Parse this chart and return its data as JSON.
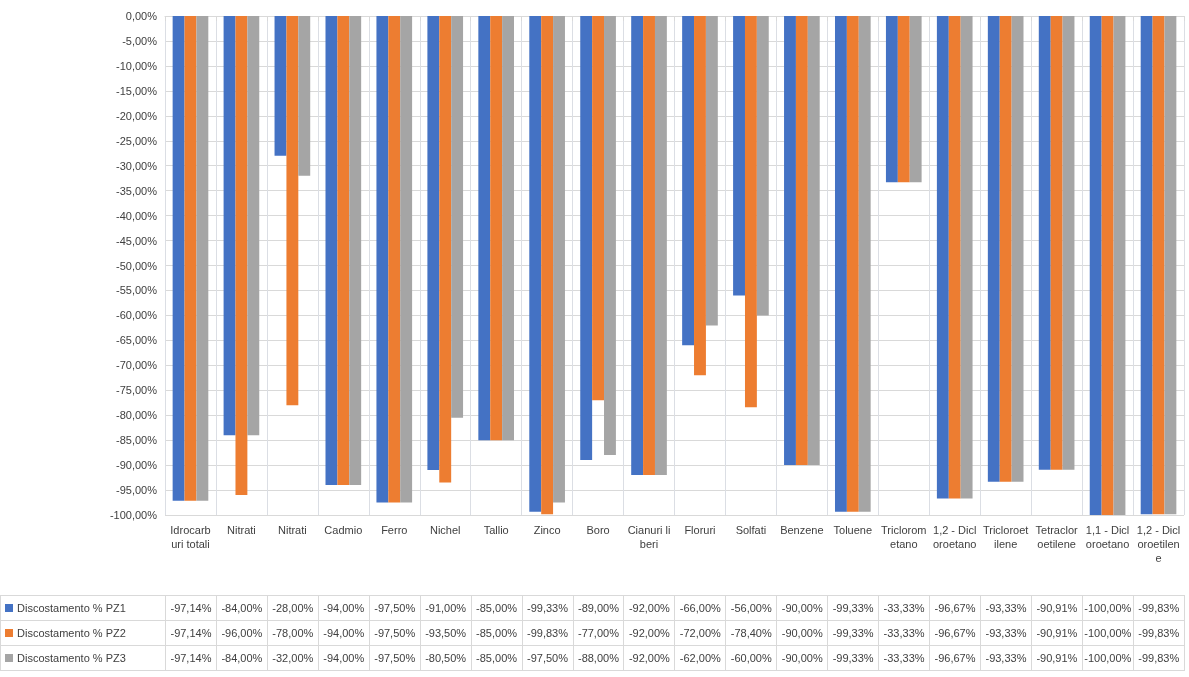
{
  "chart_data": {
    "type": "bar",
    "categories": [
      "Idrocarburi totali",
      "Nitrati",
      "Nitrati",
      "Cadmio",
      "Ferro",
      "Nichel",
      "Tallio",
      "Zinco",
      "Boro",
      "Cianuri liberi",
      "Floruri",
      "Solfati",
      "Benzene",
      "Toluene",
      "Triclorometano",
      "1,2 - Dicloroetano",
      "Tricloroetilene",
      "Tetracloroetilene",
      "1,1 - Dicloroetano",
      "1,2 - Dicloroetilene"
    ],
    "series": [
      {
        "name": "Discostamento % PZ1",
        "color": "#4472c4",
        "values": [
          -97.14,
          -84.0,
          -28.0,
          -94.0,
          -97.5,
          -91.0,
          -85.0,
          -99.33,
          -89.0,
          -92.0,
          -66.0,
          -56.0,
          -90.0,
          -99.33,
          -33.33,
          -96.67,
          -93.33,
          -90.91,
          -100.0,
          -99.83
        ],
        "value_labels": [
          "-97,14%",
          "-84,00%",
          "-28,00%",
          "-94,00%",
          "-97,50%",
          "-91,00%",
          "-85,00%",
          "-99,33%",
          "-89,00%",
          "-92,00%",
          "-66,00%",
          "-56,00%",
          "-90,00%",
          "-99,33%",
          "-33,33%",
          "-96,67%",
          "-93,33%",
          "-90,91%",
          "-100,00%",
          "-99,83%"
        ]
      },
      {
        "name": "Discostamento % PZ2",
        "color": "#ed7d31",
        "values": [
          -97.14,
          -96.0,
          -78.0,
          -94.0,
          -97.5,
          -93.5,
          -85.0,
          -99.83,
          -77.0,
          -92.0,
          -72.0,
          -78.4,
          -90.0,
          -99.33,
          -33.33,
          -96.67,
          -93.33,
          -90.91,
          -100.0,
          -99.83
        ],
        "value_labels": [
          "-97,14%",
          "-96,00%",
          "-78,00%",
          "-94,00%",
          "-97,50%",
          "-93,50%",
          "-85,00%",
          "-99,83%",
          "-77,00%",
          "-92,00%",
          "-72,00%",
          "-78,40%",
          "-90,00%",
          "-99,33%",
          "-33,33%",
          "-96,67%",
          "-93,33%",
          "-90,91%",
          "-100,00%",
          "-99,83%"
        ]
      },
      {
        "name": "Discostamento % PZ3",
        "color": "#a5a5a5",
        "values": [
          -97.14,
          -84.0,
          -32.0,
          -94.0,
          -97.5,
          -80.5,
          -85.0,
          -97.5,
          -88.0,
          -92.0,
          -62.0,
          -60.0,
          -90.0,
          -99.33,
          -33.33,
          -96.67,
          -93.33,
          -90.91,
          -100.0,
          -99.83
        ],
        "value_labels": [
          "-97,14%",
          "-84,00%",
          "-32,00%",
          "-94,00%",
          "-97,50%",
          "-80,50%",
          "-85,00%",
          "-97,50%",
          "-88,00%",
          "-92,00%",
          "-62,00%",
          "-60,00%",
          "-90,00%",
          "-99,33%",
          "-33,33%",
          "-96,67%",
          "-93,33%",
          "-90,91%",
          "-100,00%",
          "-99,83%"
        ]
      }
    ],
    "ylim": [
      -100,
      0
    ],
    "yticks": [
      {
        "value": 0,
        "label": "0,00%"
      },
      {
        "value": -5,
        "label": "-5,00%"
      },
      {
        "value": -10,
        "label": "-10,00%"
      },
      {
        "value": -15,
        "label": "-15,00%"
      },
      {
        "value": -20,
        "label": "-20,00%"
      },
      {
        "value": -25,
        "label": "-25,00%"
      },
      {
        "value": -30,
        "label": "-30,00%"
      },
      {
        "value": -35,
        "label": "-35,00%"
      },
      {
        "value": -40,
        "label": "-40,00%"
      },
      {
        "value": -45,
        "label": "-45,00%"
      },
      {
        "value": -50,
        "label": "-50,00%"
      },
      {
        "value": -55,
        "label": "-55,00%"
      },
      {
        "value": -60,
        "label": "-60,00%"
      },
      {
        "value": -65,
        "label": "-65,00%"
      },
      {
        "value": -70,
        "label": "-70,00%"
      },
      {
        "value": -75,
        "label": "-75,00%"
      },
      {
        "value": -80,
        "label": "-80,00%"
      },
      {
        "value": -85,
        "label": "-85,00%"
      },
      {
        "value": -90,
        "label": "-90,00%"
      },
      {
        "value": -95,
        "label": "-95,00%"
      },
      {
        "value": -100,
        "label": "-100,00%"
      }
    ],
    "grid": true,
    "legend": "bottom"
  }
}
